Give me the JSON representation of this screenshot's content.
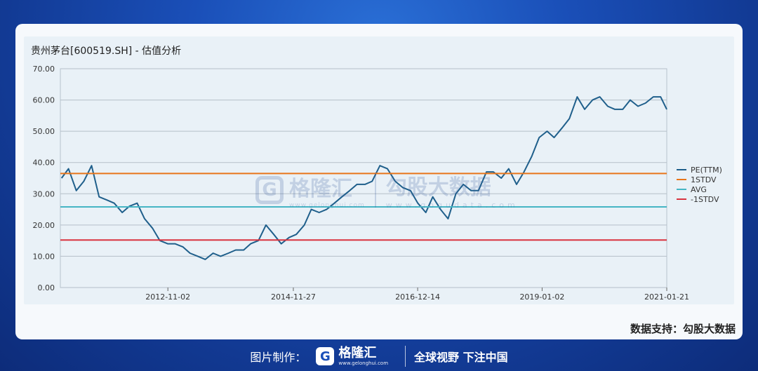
{
  "chart_data": {
    "type": "line",
    "title": "贵州茅台[600519.SH] - 估值分析",
    "xlabel": "",
    "ylabel": "",
    "ylim": [
      0,
      70
    ],
    "yticks": [
      "0.00",
      "10.00",
      "20.00",
      "30.00",
      "40.00",
      "50.00",
      "60.00",
      "70.00"
    ],
    "xticks": [
      "2012-11-02",
      "2014-11-27",
      "2016-12-14",
      "2019-01-02",
      "2021-01-21"
    ],
    "grid": true,
    "legend_position": "right",
    "series": [
      {
        "name": "PE(TTM)",
        "color": "#1f5f8b",
        "x": [
          "2011-02-01",
          "2011-03-15",
          "2011-05-01",
          "2011-06-15",
          "2011-08-01",
          "2011-09-15",
          "2011-11-01",
          "2011-12-15",
          "2012-02-01",
          "2012-03-15",
          "2012-05-01",
          "2012-06-15",
          "2012-08-01",
          "2012-09-15",
          "2012-11-01",
          "2012-12-15",
          "2013-02-01",
          "2013-03-15",
          "2013-05-01",
          "2013-06-15",
          "2013-08-01",
          "2013-09-15",
          "2013-11-01",
          "2013-12-15",
          "2014-02-01",
          "2014-03-15",
          "2014-05-01",
          "2014-06-15",
          "2014-08-01",
          "2014-09-15",
          "2014-11-01",
          "2014-12-15",
          "2015-02-01",
          "2015-03-15",
          "2015-05-01",
          "2015-06-15",
          "2015-08-01",
          "2015-09-15",
          "2015-11-01",
          "2015-12-15",
          "2016-02-01",
          "2016-03-15",
          "2016-05-01",
          "2016-06-15",
          "2016-08-01",
          "2016-09-15",
          "2016-11-01",
          "2016-12-15",
          "2017-02-01",
          "2017-03-15",
          "2017-05-01",
          "2017-06-15",
          "2017-08-01",
          "2017-09-15",
          "2017-11-01",
          "2017-12-15",
          "2018-02-01",
          "2018-03-15",
          "2018-05-01",
          "2018-06-15",
          "2018-08-01",
          "2018-09-15",
          "2018-11-01",
          "2018-12-15",
          "2019-02-01",
          "2019-03-15",
          "2019-05-01",
          "2019-06-15",
          "2019-08-01",
          "2019-09-15",
          "2019-11-01",
          "2019-12-15",
          "2020-02-01",
          "2020-03-15",
          "2020-05-01",
          "2020-06-15",
          "2020-08-01",
          "2020-09-15",
          "2020-11-01",
          "2020-12-15",
          "2021-01-21"
        ],
        "values": [
          35,
          38,
          31,
          34,
          39,
          29,
          28,
          27,
          24,
          26,
          27,
          22,
          19,
          15,
          14,
          14,
          13,
          11,
          10,
          9,
          11,
          10,
          11,
          12,
          12,
          14,
          15,
          20,
          17,
          14,
          16,
          17,
          20,
          25,
          24,
          25,
          27,
          29,
          31,
          33,
          33,
          34,
          39,
          38,
          34,
          32,
          31,
          27,
          24,
          29,
          25,
          22,
          30,
          33,
          31,
          31,
          37,
          37,
          35,
          38,
          33,
          37,
          42,
          48,
          50,
          48,
          51,
          54,
          61,
          57,
          60,
          61,
          58,
          57,
          57,
          60,
          58,
          59,
          61,
          61,
          57
        ]
      },
      {
        "name": "1STDV",
        "color": "#e8751a",
        "value": 36.5
      },
      {
        "name": "AVG",
        "color": "#45b5c4",
        "value": 25.8
      },
      {
        "name": "-1STDV",
        "color": "#d9333f",
        "value": 15.2
      }
    ]
  },
  "watermark": {
    "left_name": "格隆汇",
    "left_url": "www.gelonghui.com",
    "right_name": "勾股大数据",
    "right_url": "www.gogudata.com"
  },
  "support_text": "数据支持：勾股大数据",
  "footer": {
    "made_by": "图片制作：",
    "logo_name": "格隆汇",
    "logo_url": "www.gelonghui.com",
    "slogan": "全球视野 下注中国"
  }
}
